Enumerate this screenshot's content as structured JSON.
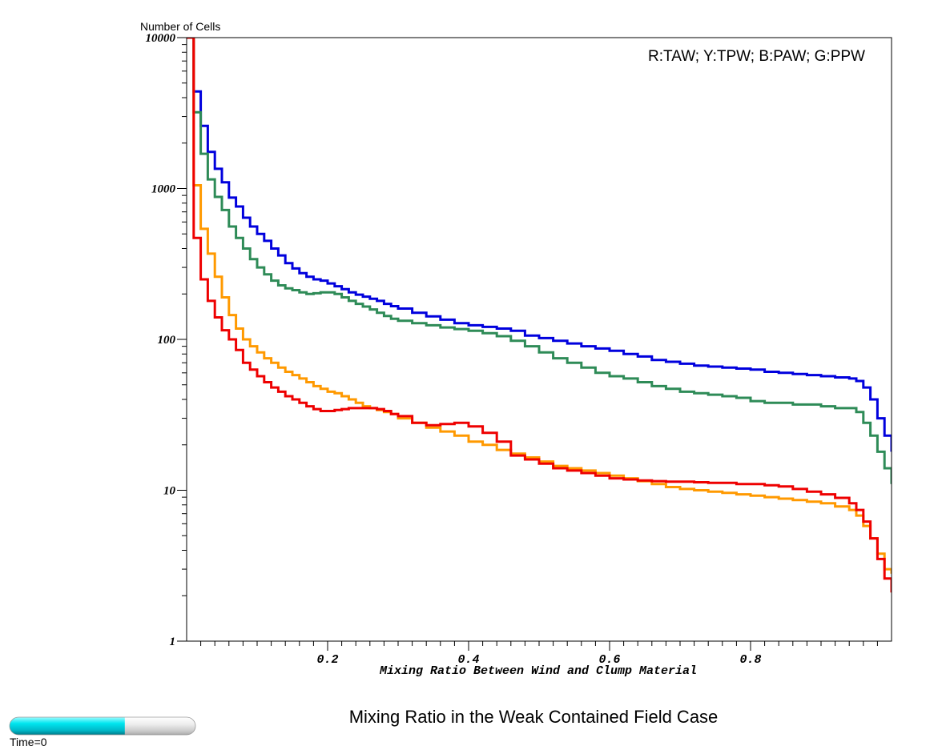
{
  "chart_data": {
    "type": "line",
    "step": true,
    "title": "Mixing Ratio in the Weak Contained Field Case",
    "xlabel": "Mixing Ratio Between Wind and Clump Material",
    "ylabel": "Number of Cells",
    "y_scale": "log",
    "xlim": [
      0,
      1
    ],
    "ylim": [
      1,
      10000
    ],
    "x_ticks": [
      0.2,
      0.4,
      0.6,
      0.8
    ],
    "x_tick_labels": [
      "0.2",
      "0.4",
      "0.6",
      "0.8"
    ],
    "y_ticks": [
      1,
      10,
      100,
      1000,
      10000
    ],
    "y_tick_labels": [
      "1",
      "10",
      "100",
      "1000",
      "10000"
    ],
    "legend_text": "R:TAW; Y:TPW; B:PAW; G:PPW",
    "legend_position": "top-right",
    "series": [
      {
        "color": "#0000dd",
        "points": [
          [
            0,
            10000
          ],
          [
            0.01,
            4400
          ],
          [
            0.02,
            2600
          ],
          [
            0.03,
            1750
          ],
          [
            0.04,
            1350
          ],
          [
            0.05,
            1100
          ],
          [
            0.06,
            870
          ],
          [
            0.07,
            760
          ],
          [
            0.08,
            640
          ],
          [
            0.09,
            560
          ],
          [
            0.1,
            500
          ],
          [
            0.11,
            450
          ],
          [
            0.12,
            400
          ],
          [
            0.13,
            360
          ],
          [
            0.14,
            320
          ],
          [
            0.15,
            295
          ],
          [
            0.16,
            275
          ],
          [
            0.17,
            260
          ],
          [
            0.18,
            250
          ],
          [
            0.19,
            245
          ],
          [
            0.2,
            235
          ],
          [
            0.21,
            225
          ],
          [
            0.22,
            215
          ],
          [
            0.23,
            205
          ],
          [
            0.24,
            198
          ],
          [
            0.25,
            192
          ],
          [
            0.26,
            186
          ],
          [
            0.27,
            180
          ],
          [
            0.28,
            172
          ],
          [
            0.29,
            166
          ],
          [
            0.3,
            160
          ],
          [
            0.32,
            150
          ],
          [
            0.34,
            142
          ],
          [
            0.36,
            135
          ],
          [
            0.38,
            128
          ],
          [
            0.4,
            124
          ],
          [
            0.42,
            121
          ],
          [
            0.44,
            118
          ],
          [
            0.46,
            114
          ],
          [
            0.48,
            106
          ],
          [
            0.5,
            102
          ],
          [
            0.52,
            98
          ],
          [
            0.54,
            94
          ],
          [
            0.56,
            90
          ],
          [
            0.58,
            87
          ],
          [
            0.6,
            84
          ],
          [
            0.62,
            80
          ],
          [
            0.64,
            77
          ],
          [
            0.66,
            73
          ],
          [
            0.68,
            71
          ],
          [
            0.7,
            69
          ],
          [
            0.72,
            67
          ],
          [
            0.74,
            66
          ],
          [
            0.76,
            65
          ],
          [
            0.78,
            64
          ],
          [
            0.8,
            63
          ],
          [
            0.82,
            61
          ],
          [
            0.84,
            60
          ],
          [
            0.86,
            59
          ],
          [
            0.88,
            58
          ],
          [
            0.9,
            57
          ],
          [
            0.92,
            56
          ],
          [
            0.94,
            55
          ],
          [
            0.95,
            53
          ],
          [
            0.96,
            48
          ],
          [
            0.97,
            40
          ],
          [
            0.98,
            30
          ],
          [
            0.99,
            23
          ],
          [
            1.0,
            18
          ]
        ]
      },
      {
        "color": "#2e8b57",
        "points": [
          [
            0,
            10000
          ],
          [
            0.01,
            3200
          ],
          [
            0.02,
            1700
          ],
          [
            0.03,
            1150
          ],
          [
            0.04,
            880
          ],
          [
            0.05,
            720
          ],
          [
            0.06,
            560
          ],
          [
            0.07,
            470
          ],
          [
            0.08,
            400
          ],
          [
            0.09,
            340
          ],
          [
            0.1,
            300
          ],
          [
            0.11,
            270
          ],
          [
            0.12,
            245
          ],
          [
            0.13,
            228
          ],
          [
            0.14,
            218
          ],
          [
            0.15,
            212
          ],
          [
            0.16,
            205
          ],
          [
            0.17,
            200
          ],
          [
            0.18,
            202
          ],
          [
            0.19,
            205
          ],
          [
            0.2,
            205
          ],
          [
            0.21,
            200
          ],
          [
            0.22,
            190
          ],
          [
            0.23,
            180
          ],
          [
            0.24,
            172
          ],
          [
            0.25,
            165
          ],
          [
            0.26,
            158
          ],
          [
            0.27,
            150
          ],
          [
            0.28,
            143
          ],
          [
            0.29,
            137
          ],
          [
            0.3,
            133
          ],
          [
            0.32,
            128
          ],
          [
            0.34,
            124
          ],
          [
            0.36,
            120
          ],
          [
            0.38,
            117
          ],
          [
            0.4,
            114
          ],
          [
            0.42,
            110
          ],
          [
            0.44,
            105
          ],
          [
            0.46,
            98
          ],
          [
            0.48,
            90
          ],
          [
            0.5,
            82
          ],
          [
            0.52,
            75
          ],
          [
            0.54,
            70
          ],
          [
            0.56,
            65
          ],
          [
            0.58,
            60
          ],
          [
            0.6,
            57
          ],
          [
            0.62,
            55
          ],
          [
            0.64,
            52
          ],
          [
            0.66,
            49
          ],
          [
            0.68,
            47
          ],
          [
            0.7,
            45
          ],
          [
            0.72,
            44
          ],
          [
            0.74,
            43
          ],
          [
            0.76,
            42
          ],
          [
            0.78,
            41
          ],
          [
            0.8,
            39
          ],
          [
            0.82,
            38
          ],
          [
            0.84,
            38
          ],
          [
            0.86,
            37
          ],
          [
            0.88,
            37
          ],
          [
            0.9,
            36
          ],
          [
            0.92,
            35
          ],
          [
            0.94,
            35
          ],
          [
            0.95,
            33
          ],
          [
            0.96,
            28
          ],
          [
            0.97,
            23
          ],
          [
            0.98,
            18
          ],
          [
            0.99,
            14
          ],
          [
            1.0,
            11
          ]
        ]
      },
      {
        "color": "#ff9900",
        "points": [
          [
            0,
            10000
          ],
          [
            0.01,
            1050
          ],
          [
            0.02,
            540
          ],
          [
            0.03,
            370
          ],
          [
            0.04,
            260
          ],
          [
            0.05,
            190
          ],
          [
            0.06,
            145
          ],
          [
            0.07,
            118
          ],
          [
            0.08,
            100
          ],
          [
            0.09,
            90
          ],
          [
            0.1,
            82
          ],
          [
            0.11,
            75
          ],
          [
            0.12,
            70
          ],
          [
            0.13,
            65
          ],
          [
            0.14,
            61
          ],
          [
            0.15,
            58
          ],
          [
            0.16,
            55
          ],
          [
            0.17,
            52
          ],
          [
            0.18,
            49
          ],
          [
            0.19,
            47
          ],
          [
            0.2,
            45
          ],
          [
            0.21,
            44
          ],
          [
            0.22,
            42
          ],
          [
            0.23,
            40
          ],
          [
            0.24,
            38
          ],
          [
            0.25,
            36
          ],
          [
            0.26,
            35
          ],
          [
            0.27,
            34
          ],
          [
            0.28,
            33
          ],
          [
            0.29,
            32
          ],
          [
            0.3,
            30
          ],
          [
            0.32,
            28
          ],
          [
            0.34,
            26
          ],
          [
            0.36,
            24.5
          ],
          [
            0.38,
            23
          ],
          [
            0.4,
            21
          ],
          [
            0.42,
            20
          ],
          [
            0.44,
            18.5
          ],
          [
            0.46,
            17.5
          ],
          [
            0.48,
            16.5
          ],
          [
            0.5,
            15.5
          ],
          [
            0.52,
            14.5
          ],
          [
            0.54,
            14
          ],
          [
            0.56,
            13.5
          ],
          [
            0.58,
            13
          ],
          [
            0.6,
            12.5
          ],
          [
            0.62,
            12
          ],
          [
            0.64,
            11.5
          ],
          [
            0.66,
            11
          ],
          [
            0.68,
            10.5
          ],
          [
            0.7,
            10.2
          ],
          [
            0.72,
            10
          ],
          [
            0.74,
            9.8
          ],
          [
            0.76,
            9.6
          ],
          [
            0.78,
            9.4
          ],
          [
            0.8,
            9.2
          ],
          [
            0.82,
            9
          ],
          [
            0.84,
            8.8
          ],
          [
            0.86,
            8.6
          ],
          [
            0.88,
            8.4
          ],
          [
            0.9,
            8.2
          ],
          [
            0.92,
            7.8
          ],
          [
            0.94,
            7.4
          ],
          [
            0.95,
            6.8
          ],
          [
            0.96,
            5.8
          ],
          [
            0.97,
            4.8
          ],
          [
            0.98,
            3.8
          ],
          [
            0.99,
            3
          ],
          [
            1.0,
            2.8
          ]
        ]
      },
      {
        "color": "#ee0000",
        "points": [
          [
            0,
            10000
          ],
          [
            0.01,
            470
          ],
          [
            0.02,
            250
          ],
          [
            0.03,
            180
          ],
          [
            0.04,
            140
          ],
          [
            0.05,
            115
          ],
          [
            0.06,
            100
          ],
          [
            0.07,
            85
          ],
          [
            0.08,
            70
          ],
          [
            0.09,
            63
          ],
          [
            0.1,
            57
          ],
          [
            0.11,
            52
          ],
          [
            0.12,
            48
          ],
          [
            0.13,
            45
          ],
          [
            0.14,
            42
          ],
          [
            0.15,
            40
          ],
          [
            0.16,
            38
          ],
          [
            0.17,
            36
          ],
          [
            0.18,
            34.5
          ],
          [
            0.19,
            33.5
          ],
          [
            0.2,
            33.5
          ],
          [
            0.21,
            34
          ],
          [
            0.22,
            34.5
          ],
          [
            0.23,
            35
          ],
          [
            0.24,
            35
          ],
          [
            0.25,
            35
          ],
          [
            0.26,
            35
          ],
          [
            0.27,
            34.5
          ],
          [
            0.28,
            33.5
          ],
          [
            0.29,
            32
          ],
          [
            0.3,
            31
          ],
          [
            0.32,
            28
          ],
          [
            0.34,
            27
          ],
          [
            0.36,
            27.5
          ],
          [
            0.38,
            28
          ],
          [
            0.4,
            26.5
          ],
          [
            0.42,
            24
          ],
          [
            0.44,
            21
          ],
          [
            0.46,
            17
          ],
          [
            0.48,
            16
          ],
          [
            0.5,
            15
          ],
          [
            0.52,
            14
          ],
          [
            0.54,
            13.5
          ],
          [
            0.56,
            13
          ],
          [
            0.58,
            12.5
          ],
          [
            0.6,
            12
          ],
          [
            0.62,
            11.8
          ],
          [
            0.64,
            11.6
          ],
          [
            0.66,
            11.5
          ],
          [
            0.68,
            11.4
          ],
          [
            0.7,
            11.4
          ],
          [
            0.72,
            11.3
          ],
          [
            0.74,
            11.2
          ],
          [
            0.76,
            11.2
          ],
          [
            0.78,
            11
          ],
          [
            0.8,
            11
          ],
          [
            0.82,
            10.8
          ],
          [
            0.84,
            10.6
          ],
          [
            0.86,
            10.2
          ],
          [
            0.88,
            9.8
          ],
          [
            0.9,
            9.4
          ],
          [
            0.92,
            8.9
          ],
          [
            0.94,
            8.2
          ],
          [
            0.95,
            7.4
          ],
          [
            0.96,
            6.2
          ],
          [
            0.97,
            4.8
          ],
          [
            0.98,
            3.5
          ],
          [
            0.99,
            2.6
          ],
          [
            1.0,
            2.1
          ]
        ]
      }
    ]
  },
  "time_label": "Time=0",
  "time_progress": 0.62
}
